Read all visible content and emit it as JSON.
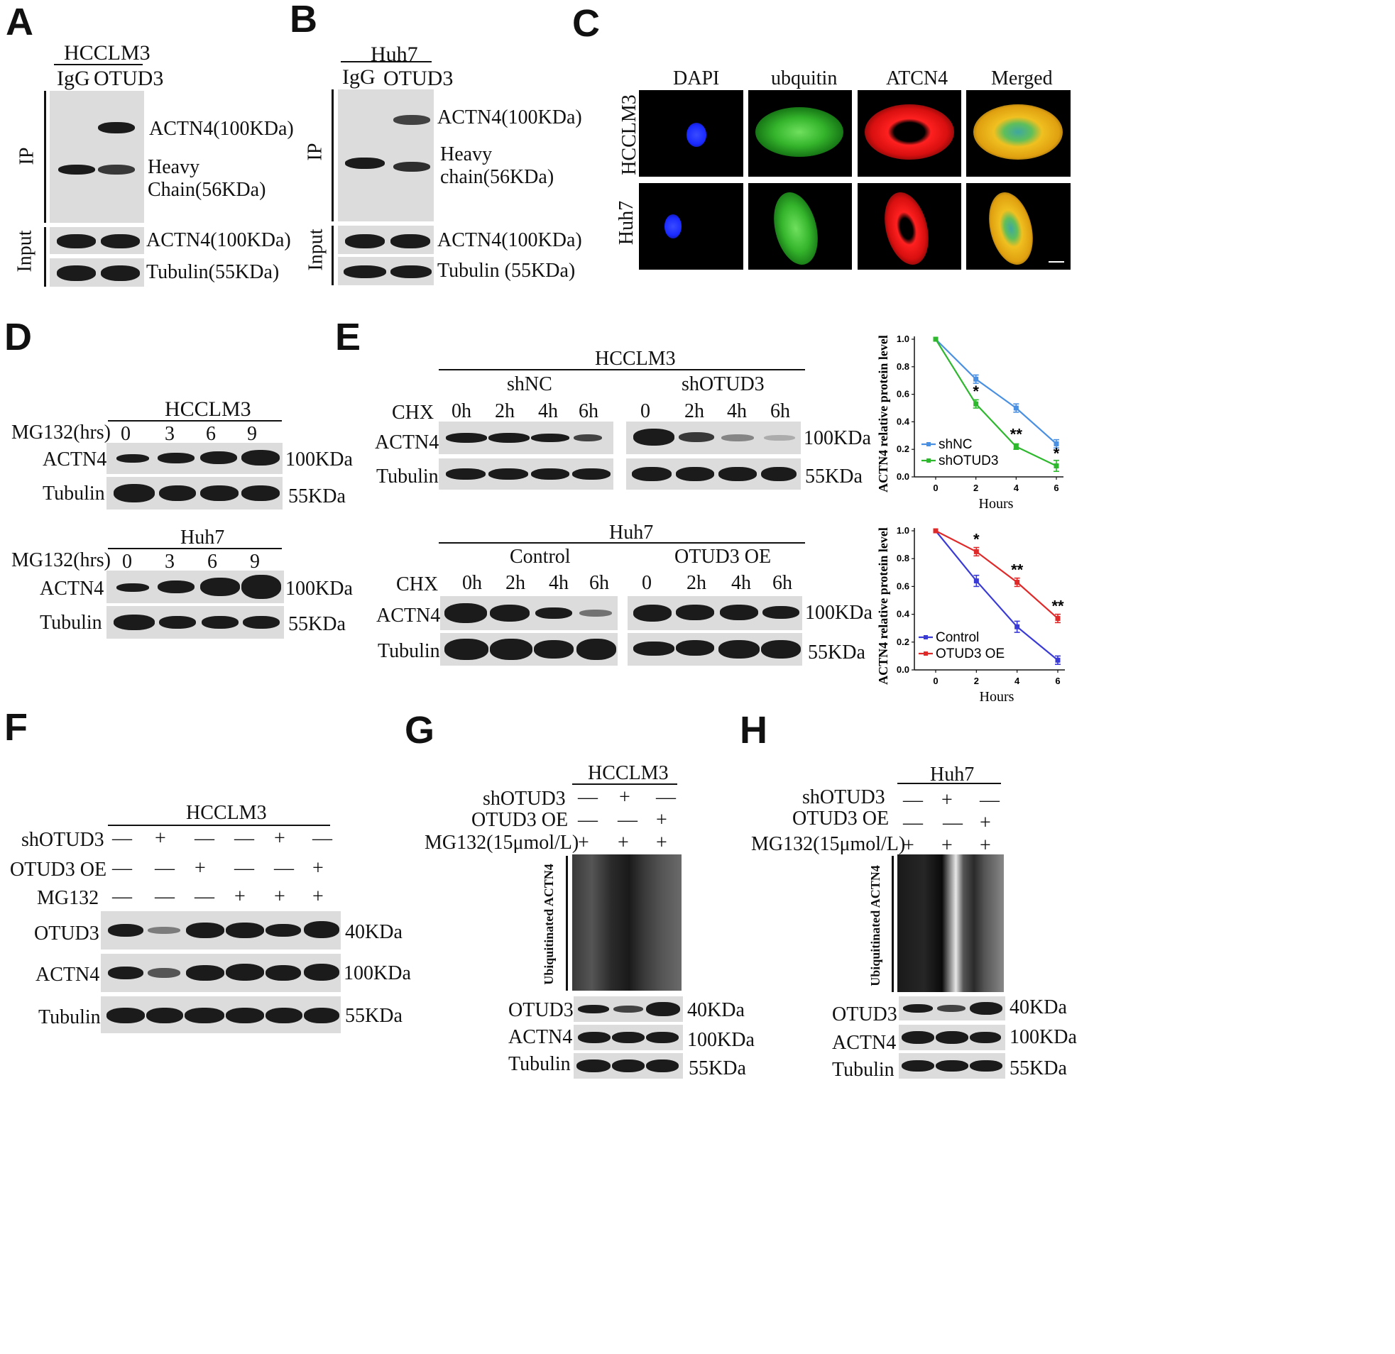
{
  "panels": {
    "A": {
      "label": "A",
      "cell_line": "HCCLM3",
      "lanes": [
        "IgG",
        "OTUD3"
      ],
      "side_ip": "IP",
      "side_input": "Input",
      "band1": "ACTN4(100KDa)",
      "band2a": "Heavy",
      "band2b": "Chain(56KDa)",
      "band3": "ACTN4(100KDa)",
      "band4": "Tubulin(55KDa)"
    },
    "B": {
      "label": "B",
      "cell_line": "Huh7",
      "lanes": [
        "IgG",
        "OTUD3"
      ],
      "side_ip": "IP",
      "side_input": "Input",
      "band1": "ACTN4(100KDa)",
      "band2a": "Heavy",
      "band2b": "chain(56KDa)",
      "band3": "ACTN4(100KDa)",
      "band4": "Tubulin (55KDa)"
    },
    "C": {
      "label": "C",
      "columns": [
        "DAPI",
        "ubquitin",
        "ATCN4",
        "Merged"
      ],
      "rows": [
        "HCCLM3",
        "Huh7"
      ]
    },
    "D": {
      "label": "D",
      "top": {
        "cell_line": "HCCLM3",
        "row_label": "MG132(hrs)",
        "times": [
          "0",
          "3",
          "6",
          "9"
        ],
        "band1": "ACTN4",
        "band2": "Tubulin",
        "kda1": "100KDa",
        "kda2": "55KDa"
      },
      "bottom": {
        "cell_line": "Huh7",
        "row_label": "MG132(hrs)",
        "times": [
          "0",
          "3",
          "6",
          "9"
        ],
        "band1": "ACTN4",
        "band2": "Tubulin",
        "kda1": "100KDa",
        "kda2": "55KDa"
      }
    },
    "E": {
      "label": "E",
      "top": {
        "cell_line": "HCCLM3",
        "group1": "shNC",
        "group2": "shOTUD3",
        "row_label": "CHX",
        "times1": [
          "0h",
          "2h",
          "4h",
          "6h"
        ],
        "times2": [
          "0",
          "2h",
          "4h",
          "6h"
        ],
        "band1": "ACTN4",
        "band2": "Tubulin",
        "kda1": "100KDa",
        "kda2": "55KDa"
      },
      "bottom": {
        "cell_line": "Huh7",
        "group1": "Control",
        "group2": "OTUD3 OE",
        "row_label": "CHX",
        "times1": [
          "0h",
          "2h",
          "4h",
          "6h"
        ],
        "times2": [
          "0",
          "2h",
          "4h",
          "6h"
        ],
        "band1": "ACTN4",
        "band2": "Tubulin",
        "kda1": "100KDa",
        "kda2": "55KDa"
      }
    },
    "F": {
      "label": "F",
      "cell_line": "HCCLM3",
      "rows": [
        {
          "name": "shOTUD3",
          "signs": [
            "—",
            "+",
            "—",
            "—",
            "+",
            "—"
          ]
        },
        {
          "name": "OTUD3 OE",
          "signs": [
            "—",
            "—",
            "+",
            "—",
            "—",
            "+"
          ]
        },
        {
          "name": "MG132",
          "signs": [
            "—",
            "—",
            "—",
            "+",
            "+",
            "+"
          ]
        }
      ],
      "bands": [
        "OTUD3",
        "ACTN4",
        "Tubulin"
      ],
      "kdas": [
        "40KDa",
        "100KDa",
        "55KDa"
      ]
    },
    "G": {
      "label": "G",
      "cell_line": "HCCLM3",
      "rows": [
        {
          "name": "shOTUD3",
          "signs": [
            "—",
            "+",
            "—"
          ]
        },
        {
          "name": "OTUD3 OE",
          "signs": [
            "—",
            "—",
            "+"
          ]
        },
        {
          "name": "MG132(15μmol/L)",
          "signs": [
            "+",
            "+",
            "+"
          ]
        }
      ],
      "side": "Ubiquitinated ACTN4",
      "bands": [
        "OTUD3",
        "ACTN4",
        "Tubulin"
      ],
      "kdas": [
        "40KDa",
        "100KDa",
        "55KDa"
      ]
    },
    "H": {
      "label": "H",
      "cell_line": "Huh7",
      "rows": [
        {
          "name": "shOTUD3",
          "signs": [
            "—",
            "+",
            "—"
          ]
        },
        {
          "name": "OTUD3 OE",
          "signs": [
            "—",
            "—",
            "+"
          ]
        },
        {
          "name": "MG132(15μmol/L)",
          "signs": [
            "+",
            "+",
            "+"
          ]
        }
      ],
      "side": "Ubiquitinated ACTN4",
      "bands": [
        "OTUD3",
        "ACTN4",
        "Tubulin"
      ],
      "kdas": [
        "40KDa",
        "100KDa",
        "55KDa"
      ]
    }
  },
  "chart_data": [
    {
      "type": "line",
      "x": [
        0,
        2,
        4,
        6
      ],
      "xlabel": "Hours",
      "ylabel": "ACTN4 relative protein level",
      "ylim": [
        0,
        1.0
      ],
      "yticks": [
        "0.0",
        "0.2",
        "0.4",
        "0.6",
        "0.8",
        "1.0"
      ],
      "xticks": [
        "0",
        "2",
        "4",
        "6"
      ],
      "legend": "bottom-left",
      "series": [
        {
          "name": "shNC",
          "color": "#4a90e2",
          "values": [
            1.0,
            0.71,
            0.5,
            0.24
          ],
          "err": [
            0,
            0.03,
            0.03,
            0.03
          ]
        },
        {
          "name": "shOTUD3",
          "color": "#2db82d",
          "values": [
            1.0,
            0.53,
            0.22,
            0.08
          ],
          "err": [
            0,
            0.03,
            0.02,
            0.04
          ]
        }
      ],
      "annotations": [
        {
          "x": 2,
          "y": 0.53,
          "text": "*"
        },
        {
          "x": 4,
          "y": 0.22,
          "text": "**"
        },
        {
          "x": 6,
          "y": 0.08,
          "text": "*"
        }
      ]
    },
    {
      "type": "line",
      "x": [
        0,
        2,
        4,
        6
      ],
      "xlabel": "Hours",
      "ylabel": "ACTN4 relative protein level",
      "ylim": [
        0,
        1.0
      ],
      "yticks": [
        "0.0",
        "0.2",
        "0.4",
        "0.6",
        "0.8",
        "1.0"
      ],
      "xticks": [
        "0",
        "2",
        "4",
        "6"
      ],
      "legend": "bottom-left",
      "series": [
        {
          "name": "Control",
          "color": "#3a3ad6",
          "values": [
            1.0,
            0.64,
            0.31,
            0.07
          ],
          "err": [
            0,
            0.04,
            0.04,
            0.03
          ]
        },
        {
          "name": "OTUD3 OE",
          "color": "#e02a2a",
          "values": [
            1.0,
            0.85,
            0.63,
            0.37
          ],
          "err": [
            0,
            0.03,
            0.03,
            0.03
          ]
        }
      ],
      "annotations": [
        {
          "x": 2,
          "y": 0.85,
          "text": "*"
        },
        {
          "x": 4,
          "y": 0.63,
          "text": "**"
        },
        {
          "x": 6,
          "y": 0.37,
          "text": "**"
        }
      ]
    }
  ]
}
